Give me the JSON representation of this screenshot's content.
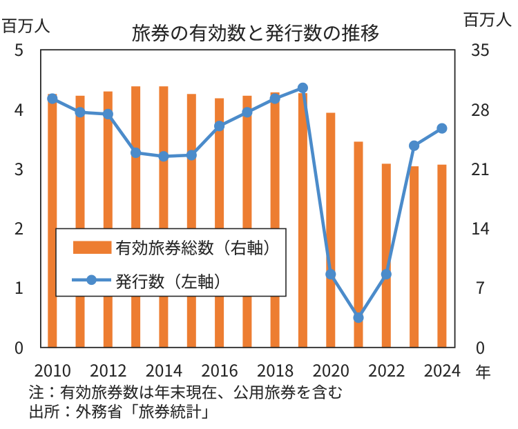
{
  "title": "旅券の有効数と発行数の推移",
  "left_axis": {
    "unit_label": "百万人",
    "tick_labels": [
      "5",
      "4",
      "3",
      "2",
      "1",
      "0"
    ],
    "min": 0,
    "max": 5
  },
  "right_axis": {
    "unit_label": "百万人",
    "tick_labels": [
      "35",
      "28",
      "21",
      "14",
      "7",
      "0"
    ],
    "min": 0,
    "max": 35
  },
  "x_axis": {
    "unit_label": "年",
    "tick_labels": [
      "2010",
      "2012",
      "2014",
      "2016",
      "2018",
      "2020",
      "2022",
      "2024"
    ]
  },
  "legend": {
    "items": [
      {
        "label": "有効旅券総数（右軸）",
        "marker": "bar",
        "color": "#ED7D31"
      },
      {
        "label": "発行数（左軸）",
        "marker": "line-circle",
        "color": "#4B8BCA"
      }
    ]
  },
  "notes": {
    "note": "注：有効旅券数は年末現在、公用旅券を含む",
    "source": "出所：外務省「旅券統計」"
  },
  "colors": {
    "bar": "#ED7D31",
    "line": "#4B8BCA",
    "axis": "#262626",
    "text": "#262626",
    "background": "#FFFFFF"
  },
  "chart_data": {
    "type": "bar",
    "subtype": "combo-bar-line-dual-axis",
    "title": "旅券の有効数と発行数の推移",
    "categories": [
      2010,
      2011,
      2012,
      2013,
      2014,
      2015,
      2016,
      2017,
      2018,
      2019,
      2020,
      2021,
      2022,
      2023,
      2024
    ],
    "series": [
      {
        "name": "有効旅券総数（右軸）",
        "type": "bar",
        "axis": "right",
        "color": "#ED7D31",
        "values": [
          29.8,
          29.6,
          30.1,
          30.7,
          30.7,
          29.8,
          29.3,
          29.6,
          30.0,
          29.9,
          27.6,
          24.2,
          21.6,
          21.3,
          21.5
        ]
      },
      {
        "name": "発行数（左軸）",
        "type": "line",
        "axis": "left",
        "color": "#4B8BCA",
        "values": [
          4.18,
          3.95,
          3.92,
          3.27,
          3.21,
          3.23,
          3.72,
          3.95,
          4.18,
          4.36,
          1.23,
          0.5,
          1.23,
          3.39,
          3.68
        ]
      }
    ],
    "xlabel": "年",
    "ylabel_left": "百万人",
    "ylabel_right": "百万人",
    "ylim_left": [
      0,
      5
    ],
    "ylim_right": [
      0,
      35
    ],
    "yticks_left": [
      0,
      1,
      2,
      3,
      4,
      5
    ],
    "yticks_right": [
      0,
      7,
      14,
      21,
      28,
      35
    ],
    "grid": false,
    "legend_position": "inside-left-middle"
  }
}
